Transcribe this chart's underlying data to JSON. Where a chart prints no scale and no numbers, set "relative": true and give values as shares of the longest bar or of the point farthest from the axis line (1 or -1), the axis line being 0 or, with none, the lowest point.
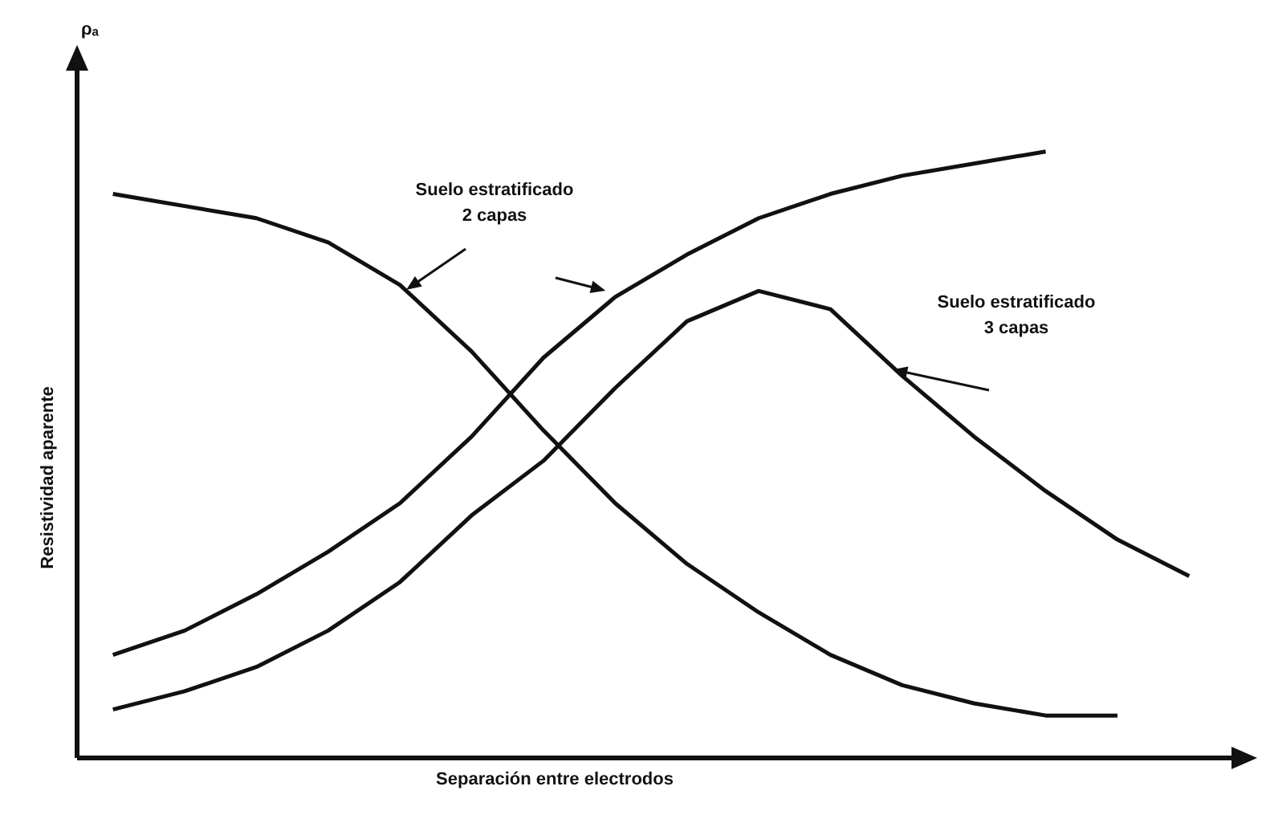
{
  "chart_data": {
    "type": "line",
    "relative": true,
    "xlabel": "Separación entre electrodos",
    "ylabel": "Resistividad aparente",
    "annotations": [
      "Suelo estratificado\n2 capas",
      "Suelo estratificado\n3 capas",
      "ρₐ"
    ],
    "legend": false,
    "marker": "none",
    "line_style": "solid",
    "categories": [
      null,
      null,
      null,
      null,
      null,
      null,
      null,
      null,
      null,
      null,
      null,
      null,
      null,
      null,
      null,
      null
    ],
    "series": [
      {
        "color": "#111111",
        "values": [
          0.93,
          0.91,
          0.89,
          0.85,
          0.78,
          0.67,
          0.54,
          0.42,
          0.32,
          0.24,
          0.17,
          0.12,
          0.09,
          0.07,
          0.07,
          null
        ]
      },
      {
        "color": "#111111",
        "values": [
          0.17,
          0.21,
          0.27,
          0.34,
          0.42,
          0.53,
          0.66,
          0.76,
          0.83,
          0.89,
          0.93,
          0.96,
          0.98,
          1.0,
          null,
          null
        ]
      },
      {
        "color": "#111111",
        "values": [
          0.08,
          0.11,
          0.15,
          0.21,
          0.29,
          0.4,
          0.49,
          0.61,
          0.72,
          0.77,
          0.74,
          0.63,
          0.53,
          0.44,
          0.36,
          0.3
        ]
      }
    ]
  }
}
